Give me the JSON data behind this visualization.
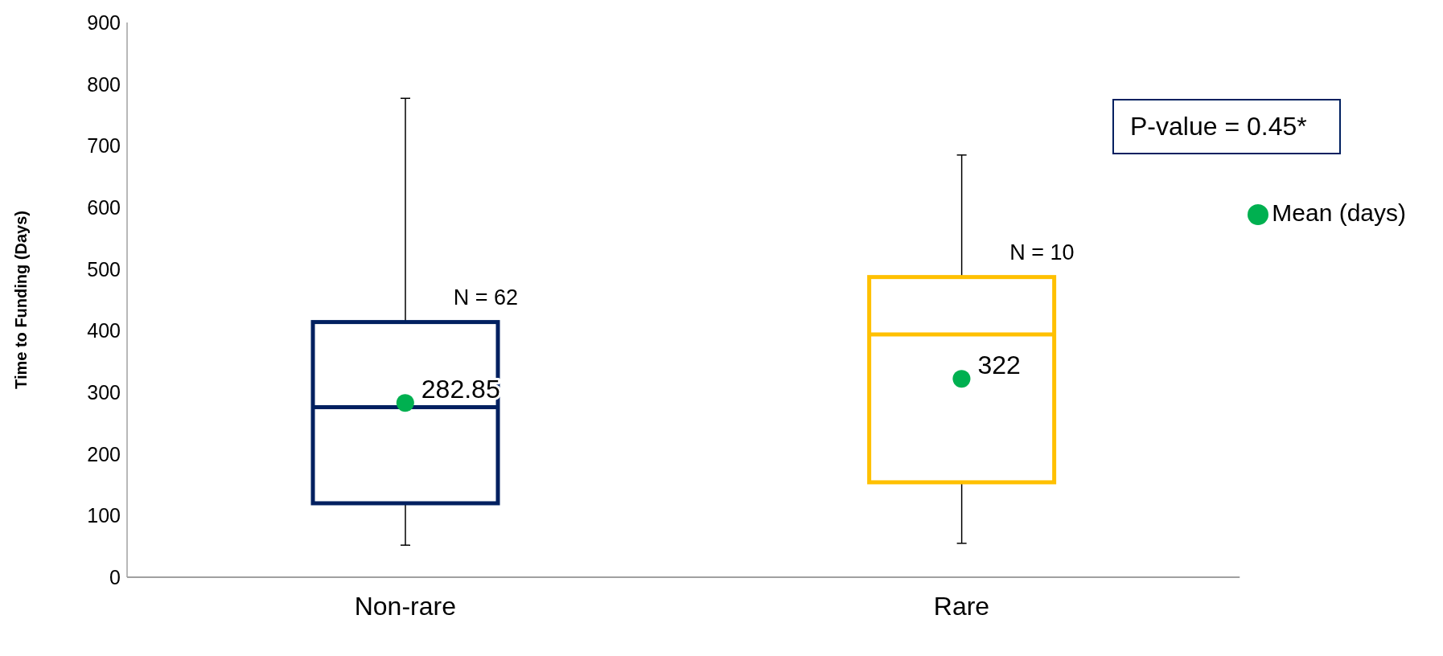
{
  "chart_data": {
    "type": "box",
    "ylabel": "Time to Funding (Days)",
    "categories": [
      "Non-rare",
      "Rare"
    ],
    "boxes": [
      {
        "low": 52,
        "q1": 120,
        "median": 276,
        "q3": 414,
        "high": 777
      },
      {
        "low": 55,
        "q1": 154,
        "median": 394,
        "q3": 487,
        "high": 685
      }
    ],
    "colors": [
      "#002060",
      "#ffc000"
    ],
    "ylim": [
      0,
      900
    ],
    "yticks": [
      0,
      100,
      200,
      300,
      400,
      500,
      600,
      700,
      800,
      900
    ],
    "grid": false,
    "legend": "right",
    "annotations": [
      {
        "text": "N = 62",
        "x": "Non-rare",
        "y": 414
      },
      {
        "text": "N = 10",
        "x": "Rare",
        "y": 487
      },
      "P-value = 0.45*"
    ],
    "series": [
      {
        "type": "scatter",
        "name": "Mean (days)",
        "color": "#00b050",
        "marker": "circle",
        "x": [
          "Non-rare",
          "Rare"
        ],
        "values": [
          282.85,
          322
        ],
        "value_labels": [
          "282.85",
          "322"
        ]
      }
    ]
  }
}
